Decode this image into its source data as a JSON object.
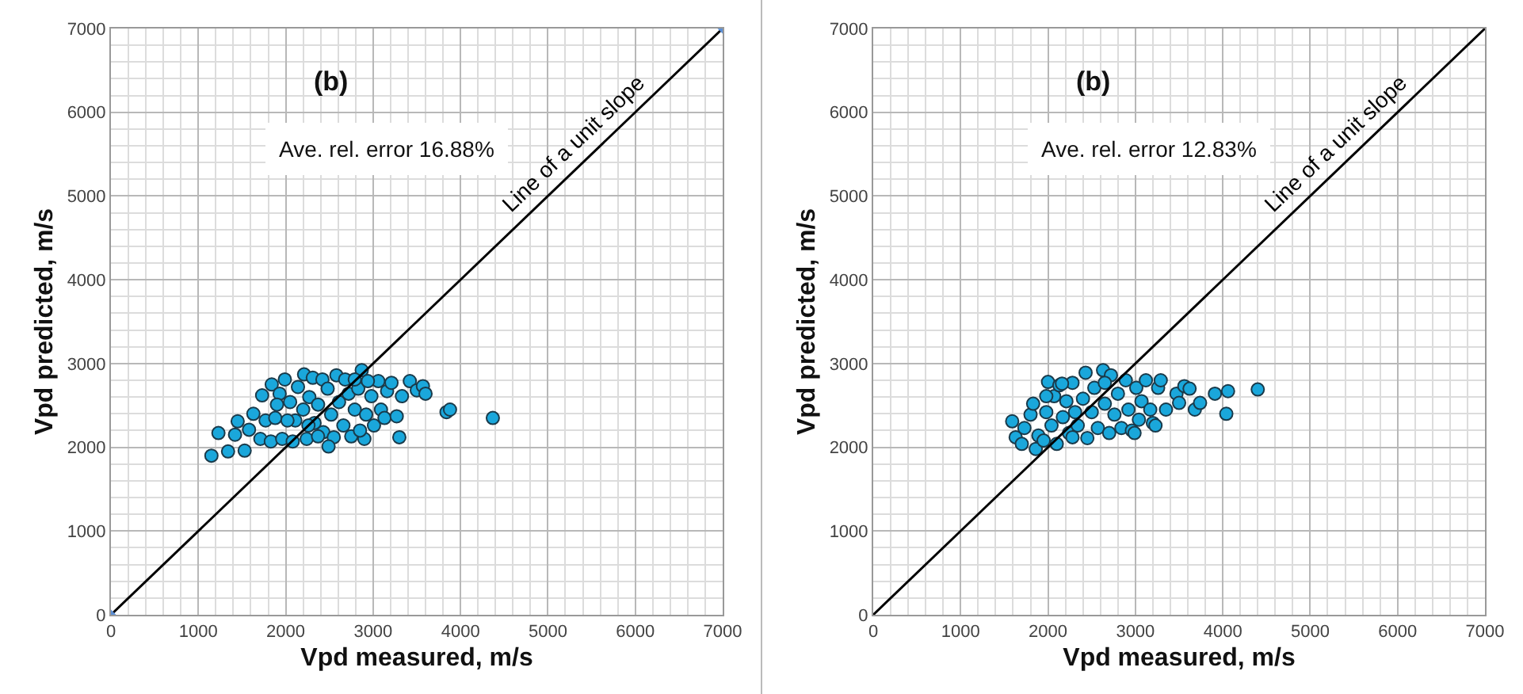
{
  "chart_data": [
    {
      "type": "scatter",
      "xlabel": "Vpd measured, m/s",
      "ylabel": "Vpd predicted, m/s",
      "xlim": [
        0,
        7000
      ],
      "ylim": [
        0,
        7000
      ],
      "xticks": [
        0,
        1000,
        2000,
        3000,
        4000,
        5000,
        6000,
        7000
      ],
      "yticks": [
        0,
        1000,
        2000,
        3000,
        4000,
        5000,
        6000,
        7000
      ],
      "grid": true,
      "marker": "circle",
      "annotations": [
        "(b)",
        "Ave. rel. error 16.88%"
      ],
      "series": [
        {
          "color": "#1aa7db",
          "x": [
            1150,
            1230,
            1340,
            1450,
            1420,
            1530,
            1580,
            1630,
            1730,
            1710,
            1770,
            1840,
            1830,
            1880,
            1930,
            1960,
            1990,
            2050,
            2080,
            2110,
            2140,
            2200,
            2210,
            2240,
            2270,
            2310,
            2330,
            2370,
            2420,
            2430,
            2480,
            2520,
            2550,
            2580,
            2610,
            2660,
            2680,
            2720,
            2750,
            2790,
            2830,
            2870,
            2900,
            2920,
            2980,
            3010,
            3060,
            3090,
            3130,
            3160,
            3210,
            3270,
            3300,
            3330,
            3420,
            3500,
            3570,
            3600,
            3840,
            3880,
            4370,
            1900,
            2260,
            2370,
            2790,
            2940,
            2020,
            2490,
            2850
          ],
          "values": [
            1900,
            2170,
            1950,
            2310,
            2150,
            1960,
            2210,
            2400,
            2620,
            2100,
            2320,
            2750,
            2070,
            2350,
            2640,
            2100,
            2810,
            2540,
            2070,
            2320,
            2720,
            2450,
            2870,
            2100,
            2600,
            2830,
            2290,
            2510,
            2810,
            2180,
            2700,
            2390,
            2120,
            2860,
            2540,
            2260,
            2810,
            2640,
            2130,
            2450,
            2700,
            2920,
            2100,
            2390,
            2610,
            2260,
            2790,
            2450,
            2350,
            2670,
            2770,
            2370,
            2120,
            2610,
            2790,
            2680,
            2730,
            2640,
            2420,
            2450,
            2350,
            2510,
            2260,
            2130,
            2810,
            2790,
            2320,
            2010,
            2200
          ]
        },
        {
          "type": "line",
          "name": "Line of a unit slope",
          "color": "#000000",
          "marker": "diamond",
          "x": [
            0,
            7000
          ],
          "values": [
            0,
            7000
          ]
        }
      ]
    },
    {
      "type": "scatter",
      "xlabel": "Vpd measured, m/s",
      "ylabel": "Vpd predicted, m/s",
      "xlim": [
        0,
        7000
      ],
      "ylim": [
        0,
        7000
      ],
      "xticks": [
        0,
        1000,
        2000,
        3000,
        4000,
        5000,
        6000,
        7000
      ],
      "yticks": [
        0,
        1000,
        2000,
        3000,
        4000,
        5000,
        6000,
        7000
      ],
      "grid": true,
      "marker": "circle",
      "annotations": [
        "(b)",
        "Ave. rel. error 12.83%"
      ],
      "series": [
        {
          "color": "#1aa7db",
          "x": [
            1590,
            1630,
            1700,
            1730,
            1800,
            1830,
            1860,
            1890,
            1950,
            1980,
            2000,
            2040,
            2070,
            2100,
            2130,
            2170,
            2210,
            2240,
            2280,
            2310,
            2340,
            2400,
            2430,
            2450,
            2500,
            2530,
            2570,
            2630,
            2650,
            2700,
            2720,
            2760,
            2800,
            2840,
            2890,
            2920,
            2960,
            3010,
            3040,
            3070,
            3120,
            3170,
            3200,
            3230,
            3260,
            3290,
            3350,
            3470,
            3500,
            3560,
            3620,
            3680,
            3740,
            3910,
            4040,
            4060,
            4400,
            1980,
            2160,
            2650,
            2990,
            2280
          ],
          "values": [
            2310,
            2120,
            2040,
            2230,
            2390,
            2520,
            1980,
            2140,
            2080,
            2420,
            2780,
            2260,
            2610,
            2040,
            2740,
            2360,
            2550,
            2170,
            2770,
            2420,
            2260,
            2580,
            2890,
            2110,
            2420,
            2710,
            2230,
            2920,
            2520,
            2170,
            2860,
            2390,
            2640,
            2230,
            2800,
            2450,
            2200,
            2710,
            2330,
            2550,
            2800,
            2450,
            2290,
            2260,
            2710,
            2800,
            2450,
            2640,
            2530,
            2730,
            2700,
            2450,
            2530,
            2640,
            2400,
            2670,
            2690,
            2610,
            2760,
            2770,
            2170,
            2120
          ]
        },
        {
          "type": "line",
          "name": "Line of a unit slope",
          "color": "#000000",
          "marker": "none",
          "x": [
            0,
            7000
          ],
          "values": [
            0,
            7000
          ]
        }
      ]
    }
  ]
}
